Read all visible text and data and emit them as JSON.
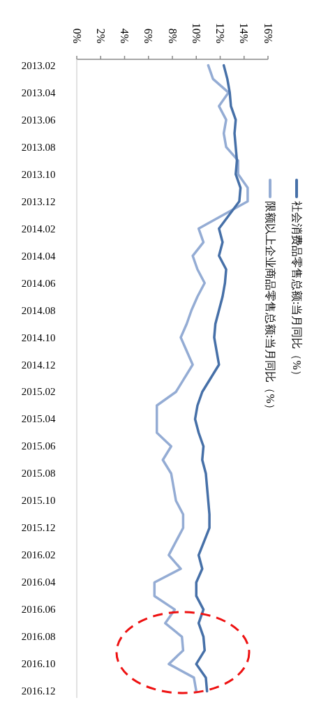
{
  "chart_data": {
    "type": "line",
    "legend": "right",
    "orientation": "horizontal",
    "x": [
      "2013-02",
      "2013-03",
      "2013-04",
      "2013-05",
      "2013-06",
      "2013-07",
      "2013-08",
      "2013-09",
      "2013-10",
      "2013-11",
      "2013-12",
      "2014-02",
      "2014-03",
      "2014-04",
      "2014-05",
      "2014-06",
      "2014-07",
      "2014-08",
      "2014-09",
      "2014-10",
      "2014-11",
      "2014-12",
      "2015-02",
      "2015-03",
      "2015-04",
      "2015-05",
      "2015-06",
      "2015-07",
      "2015-08",
      "2015-09",
      "2015-10",
      "2015-11",
      "2015-12",
      "2016-02",
      "2016-03",
      "2016-04",
      "2016-05",
      "2016-06",
      "2016-07",
      "2016-08",
      "2016-09",
      "2016-10",
      "2016-11",
      "2016-12"
    ],
    "ylim": [
      "2016-12-16",
      "2013-01-18"
    ],
    "yticks": [
      {
        "value": "2013-02",
        "label": "2013.02"
      },
      {
        "value": "2013-04",
        "label": "2013.04"
      },
      {
        "value": "2013-06",
        "label": "2013.06"
      },
      {
        "value": "2013-08",
        "label": "2013.08"
      },
      {
        "value": "2013-10",
        "label": "2013.10"
      },
      {
        "value": "2013-12",
        "label": "2013.12"
      },
      {
        "value": "2014-02",
        "label": "2014.02"
      },
      {
        "value": "2014-04",
        "label": "2014.04"
      },
      {
        "value": "2014-06",
        "label": "2014.06"
      },
      {
        "value": "2014-08",
        "label": "2014.08"
      },
      {
        "value": "2014-10",
        "label": "2014.10"
      },
      {
        "value": "2014-12",
        "label": "2014.12"
      },
      {
        "value": "2015-02",
        "label": "2015.02"
      },
      {
        "value": "2015-04",
        "label": "2015.04"
      },
      {
        "value": "2015-06",
        "label": "2015.06"
      },
      {
        "value": "2015-08",
        "label": "2015.08"
      },
      {
        "value": "2015-10",
        "label": "2015.10"
      },
      {
        "value": "2015-12",
        "label": "2015.12"
      },
      {
        "value": "2016-02",
        "label": "2016.02"
      },
      {
        "value": "2016-04",
        "label": "2016.04"
      },
      {
        "value": "2016-06",
        "label": "2016.06"
      },
      {
        "value": "2016-08",
        "label": "2016.08"
      },
      {
        "value": "2016-10",
        "label": "2016.10"
      },
      {
        "value": "2016-12",
        "label": "2016.12"
      }
    ],
    "xlim": [
      0,
      16
    ],
    "xticks": [
      {
        "value": 0,
        "label": "0%"
      },
      {
        "value": 2,
        "label": "2%"
      },
      {
        "value": 4,
        "label": "4%"
      },
      {
        "value": 6,
        "label": "6%"
      },
      {
        "value": 8,
        "label": "8%"
      },
      {
        "value": 10,
        "label": "10%"
      },
      {
        "value": 12,
        "label": "12%"
      },
      {
        "value": 14,
        "label": "14%"
      },
      {
        "value": 16,
        "label": "16%"
      }
    ],
    "series": [
      {
        "name": "社会消费品零售总额:当月同比（%）",
        "color": "#4670a8",
        "values": [
          12.3,
          12.6,
          12.8,
          12.9,
          13.3,
          13.2,
          13.3,
          13.4,
          13.3,
          13.7,
          13.6,
          11.9,
          12.2,
          11.9,
          12.5,
          12.4,
          12.2,
          11.9,
          11.6,
          11.5,
          11.7,
          11.9,
          10.5,
          10.1,
          9.9,
          10.2,
          10.6,
          10.5,
          10.8,
          10.9,
          11.0,
          11.1,
          11.1,
          10.2,
          10.5,
          10.0,
          10.0,
          10.6,
          10.2,
          10.6,
          10.7,
          10.0,
          10.8,
          10.9
        ]
      },
      {
        "name": "限额以上企业商品零售总额:当月同比（%）",
        "color": "#94acd4",
        "values": [
          11.0,
          11.4,
          12.7,
          11.9,
          12.5,
          12.3,
          12.5,
          13.5,
          13.5,
          14.3,
          14.3,
          10.2,
          10.6,
          9.7,
          10.1,
          10.7,
          10.1,
          9.6,
          9.2,
          8.7,
          9.2,
          9.7,
          8.3,
          6.7,
          6.7,
          6.7,
          7.9,
          7.2,
          7.9,
          8.1,
          8.3,
          8.9,
          8.9,
          7.7,
          8.7,
          6.5,
          6.5,
          8.2,
          7.4,
          8.8,
          8.9,
          7.7,
          9.8,
          10.0
        ]
      }
    ]
  }
}
